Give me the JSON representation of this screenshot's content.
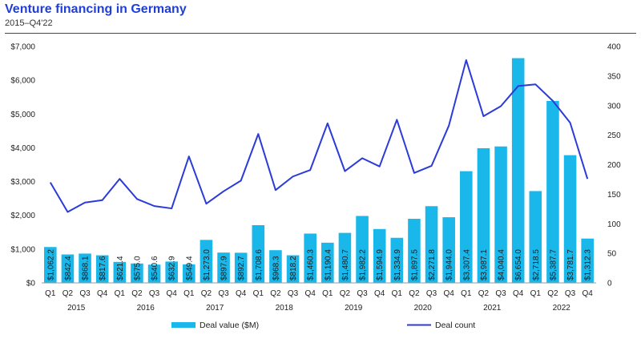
{
  "header": {
    "title": "Venture financing in Germany",
    "subtitle": "2015–Q4'22"
  },
  "colors": {
    "bar": "#1ab8ea",
    "line": "#2b3bd9",
    "title": "#1f3fd8"
  },
  "chart_data": {
    "type": "bar",
    "categories": [
      "Q1",
      "Q2",
      "Q3",
      "Q4",
      "Q1",
      "Q2",
      "Q3",
      "Q4",
      "Q1",
      "Q2",
      "Q3",
      "Q4",
      "Q1",
      "Q2",
      "Q3",
      "Q4",
      "Q1",
      "Q2",
      "Q3",
      "Q4",
      "Q1",
      "Q2",
      "Q3",
      "Q4",
      "Q1",
      "Q2",
      "Q3",
      "Q4",
      "Q1",
      "Q2",
      "Q3",
      "Q4"
    ],
    "years": [
      "2015",
      "2016",
      "2017",
      "2018",
      "2019",
      "2020",
      "2021",
      "2022"
    ],
    "series": [
      {
        "name": "Deal value ($M)",
        "type": "bar",
        "axis": "left",
        "values": [
          1062.2,
          842.4,
          868.1,
          817.6,
          621.4,
          575.0,
          540.6,
          632.9,
          549.4,
          1273.0,
          897.9,
          892.7,
          1708.6,
          968.3,
          818.2,
          1460.3,
          1190.4,
          1480.7,
          1982.2,
          1594.9,
          1334.9,
          1897.5,
          2271.8,
          1944.0,
          3307.4,
          3987.1,
          4040.4,
          6654.0,
          2718.5,
          5387.7,
          3781.7,
          1312.3
        ],
        "labels": [
          "$1,062.2",
          "$842.4",
          "$868.1",
          "$817.6",
          "$621.4",
          "$575.0",
          "$540.6",
          "$632.9",
          "$549.4",
          "$1,273.0",
          "$897.9",
          "$892.7",
          "$1,708.6",
          "$968.3",
          "$818.2",
          "$1,460.3",
          "$1,190.4",
          "$1,480.7",
          "$1,982.2",
          "$1,594.9",
          "$1,334.9",
          "$1,897.5",
          "$2,271.8",
          "$1,944.0",
          "$3,307.4",
          "$3,987.1",
          "$4,040.4",
          "$6,654.0",
          "$2,718.5",
          "$5,387.7",
          "$3,781.7",
          "$1,312.3"
        ]
      },
      {
        "name": "Deal count",
        "type": "line",
        "axis": "right",
        "values": [
          170,
          120,
          136,
          140,
          176,
          142,
          130,
          126,
          214,
          134,
          155,
          173,
          252,
          157,
          180,
          191,
          270,
          189,
          211,
          197,
          276,
          186,
          198,
          266,
          377,
          282,
          299,
          333,
          336,
          308,
          271,
          176
        ]
      }
    ],
    "y_left": {
      "min": 0,
      "max": 7000,
      "ticks": [
        "$0",
        "$1,000",
        "$2,000",
        "$3,000",
        "$4,000",
        "$5,000",
        "$6,000",
        "$7,000"
      ]
    },
    "y_right": {
      "min": 0,
      "max": 400,
      "ticks": [
        "0",
        "50",
        "100",
        "150",
        "200",
        "250",
        "300",
        "350",
        "400"
      ]
    },
    "legend_position": "bottom",
    "grid": false
  }
}
